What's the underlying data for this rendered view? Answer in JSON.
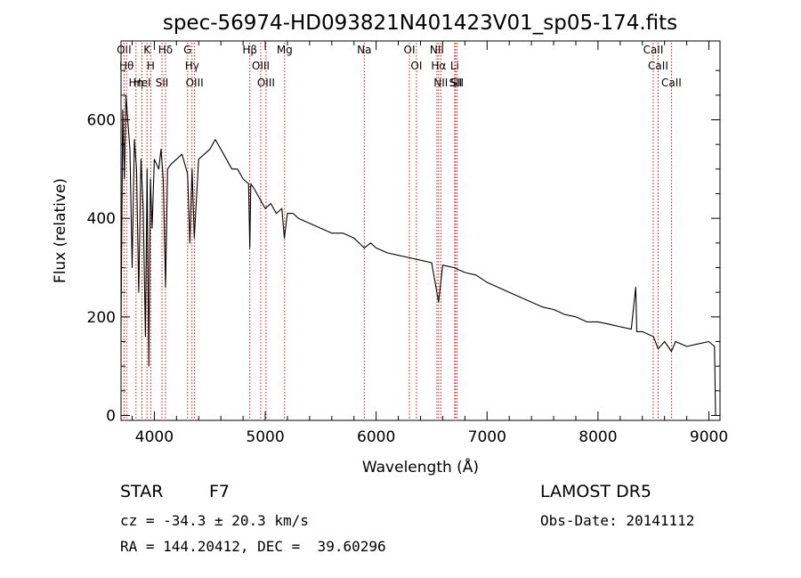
{
  "chart_data": {
    "type": "line",
    "title": "spec-56974-HD093821N401423V01_sp05-174.fits",
    "xlabel": "Wavelength (Å)",
    "ylabel": "Flux (relative)",
    "xlim": [
      3700,
      9100
    ],
    "ylim": [
      -10,
      760
    ],
    "x_ticks": [
      4000,
      5000,
      6000,
      7000,
      8000,
      9000
    ],
    "y_ticks": [
      0,
      200,
      400,
      600
    ],
    "grid": false,
    "series": [
      {
        "x": [
          3700,
          3715,
          3730,
          3745,
          3760,
          3780,
          3800,
          3820,
          3840,
          3860,
          3880,
          3900,
          3920,
          3935,
          3950,
          3965,
          3980,
          4000,
          4020,
          4040,
          4060,
          4080,
          4101,
          4120,
          4150,
          4200,
          4250,
          4300,
          4320,
          4340,
          4360,
          4400,
          4450,
          4500,
          4550,
          4600,
          4650,
          4700,
          4750,
          4800,
          4850,
          4861,
          4870,
          4900,
          4950,
          5000,
          5050,
          5100,
          5150,
          5172,
          5200,
          5250,
          5300,
          5400,
          5500,
          5600,
          5700,
          5800,
          5893,
          5950,
          6000,
          6100,
          6200,
          6300,
          6400,
          6500,
          6563,
          6600,
          6700,
          6800,
          6900,
          7000,
          7100,
          7200,
          7300,
          7400,
          7500,
          7600,
          7700,
          7800,
          7900,
          8000,
          8100,
          8200,
          8300,
          8340,
          8350,
          8400,
          8450,
          8500,
          8542,
          8600,
          8662,
          8700,
          8800,
          8900,
          9000,
          9050,
          9060
        ],
        "values": [
          180,
          620,
          480,
          650,
          600,
          540,
          300,
          560,
          500,
          250,
          520,
          420,
          160,
          500,
          100,
          480,
          380,
          520,
          510,
          500,
          540,
          480,
          260,
          500,
          510,
          520,
          530,
          490,
          350,
          500,
          360,
          520,
          530,
          540,
          560,
          540,
          520,
          500,
          500,
          480,
          470,
          340,
          470,
          460,
          440,
          420,
          430,
          410,
          420,
          360,
          410,
          410,
          400,
          390,
          380,
          370,
          370,
          360,
          340,
          350,
          340,
          330,
          325,
          320,
          315,
          310,
          230,
          305,
          300,
          290,
          285,
          270,
          260,
          250,
          240,
          230,
          220,
          215,
          205,
          200,
          190,
          190,
          185,
          180,
          175,
          260,
          170,
          170,
          165,
          160,
          135,
          150,
          130,
          150,
          140,
          145,
          150,
          140,
          0
        ]
      }
    ],
    "lines": [
      {
        "label": "OII",
        "x": 3727
      },
      {
        "label": "Hθ",
        "x": 3750
      },
      {
        "label": "Hη",
        "x": 3835
      },
      {
        "label": "HeI",
        "x": 3889
      },
      {
        "label": "K",
        "x": 3934
      },
      {
        "label": "H",
        "x": 3968
      },
      {
        "label": "SII",
        "x": 4069
      },
      {
        "label": "Hδ",
        "x": 4101
      },
      {
        "label": "Hγ",
        "x": 4340
      },
      {
        "label": "G",
        "x": 4300
      },
      {
        "label": "OIII",
        "x": 4363
      },
      {
        "label": "Hβ",
        "x": 4861
      },
      {
        "label": "OIII",
        "x": 4959
      },
      {
        "label": "OIII",
        "x": 5007
      },
      {
        "label": "Mg",
        "x": 5175
      },
      {
        "label": "Na",
        "x": 5893
      },
      {
        "label": "OI",
        "x": 6300
      },
      {
        "label": "OI",
        "x": 6363
      },
      {
        "label": "NII",
        "x": 6548
      },
      {
        "label": "Hα",
        "x": 6563
      },
      {
        "label": "NII",
        "x": 6583
      },
      {
        "label": "Li",
        "x": 6708
      },
      {
        "label": "SII",
        "x": 6716
      },
      {
        "label": "SII",
        "x": 6731
      },
      {
        "label": "CaII",
        "x": 8498
      },
      {
        "label": "CaII",
        "x": 8542
      },
      {
        "label": "CaII",
        "x": 8662
      }
    ]
  },
  "info": {
    "object_class": "STAR",
    "subclass": "F7",
    "redshift": "cz = -34.3 ± 20.3 km/s",
    "coords": "RA = 144.20412, DEC =  39.60296",
    "survey": "LAMOST DR5",
    "obs_date": "Obs-Date: 20141112"
  }
}
